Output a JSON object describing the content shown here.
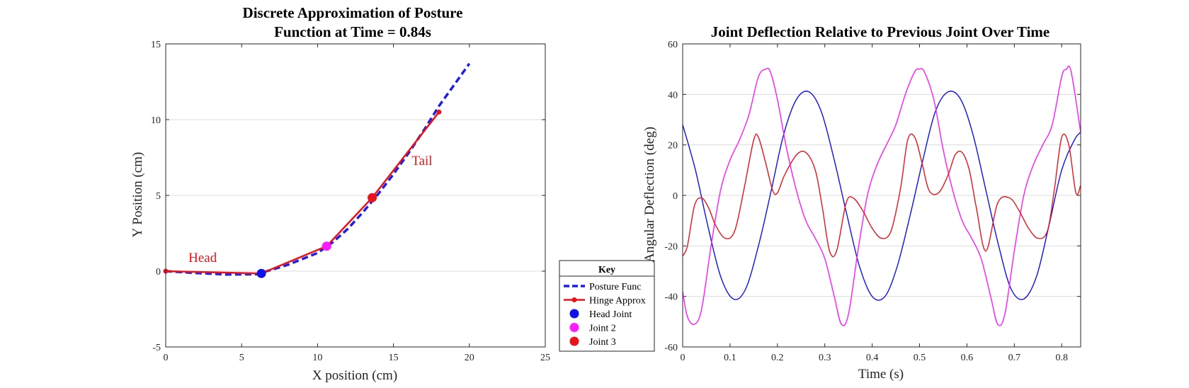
{
  "chart_data": [
    {
      "type": "line",
      "title": [
        "Discrete Approximation of Posture",
        "Function at Time = 0.84s"
      ],
      "xlabel": "X position (cm)",
      "ylabel": "Y Position (cm)",
      "xlim": [
        0,
        25
      ],
      "ylim": [
        -5,
        15
      ],
      "xticks": [
        0,
        5,
        10,
        15,
        20,
        25
      ],
      "yticks": [
        -5,
        0,
        5,
        10,
        15
      ],
      "grid": "horizontal",
      "series": [
        {
          "name": "Posture Func",
          "color": "#1f1fe6",
          "style": "dashed",
          "x": [
            0,
            2,
            4,
            6,
            8,
            10,
            11,
            12,
            13,
            14,
            15,
            16,
            17,
            18,
            19,
            20
          ],
          "y": [
            0,
            -0.12,
            -0.22,
            -0.2,
            0.4,
            1.2,
            1.9,
            2.8,
            3.9,
            5.1,
            6.4,
            7.8,
            9.3,
            10.9,
            12.3,
            13.7
          ]
        },
        {
          "name": "Hinge Approx",
          "color": "#e8141a",
          "style": "solid-marker",
          "x": [
            0,
            6.3,
            10.6,
            13.6,
            18
          ],
          "y": [
            0,
            -0.15,
            1.65,
            4.85,
            10.5
          ]
        }
      ],
      "points": [
        {
          "name": "Head Joint",
          "x": 6.3,
          "y": -0.15,
          "color": "#1010e8"
        },
        {
          "name": "Joint 2",
          "x": 10.6,
          "y": 1.65,
          "color": "#ff1aff"
        },
        {
          "name": "Joint 3",
          "x": 13.6,
          "y": 4.85,
          "color": "#e8141a"
        }
      ],
      "annotations": [
        {
          "text": "Head",
          "x": 1.5,
          "y": 0.6
        },
        {
          "text": "Tail",
          "x": 16.2,
          "y": 7.0
        }
      ],
      "legend": {
        "title": "Key",
        "placement": "outside-right-bottom",
        "entries": [
          "Posture Func",
          "Hinge Approx",
          "Head Joint",
          "Joint 2",
          "Joint 3"
        ]
      }
    },
    {
      "type": "line",
      "title": "Joint Deflection Relative to Previous Joint Over Time",
      "xlabel": "Time (s)",
      "ylabel": "Angular Deflection (deg)",
      "xlim": [
        0,
        0.84
      ],
      "ylim": [
        -60,
        60
      ],
      "xticks": [
        0,
        0.1,
        0.2,
        0.3,
        0.4,
        0.5,
        0.6,
        0.7,
        0.8
      ],
      "yticks": [
        -60,
        -40,
        -20,
        0,
        20,
        40,
        60
      ],
      "grid": "horizontal",
      "series": [
        {
          "name": "Head Joint",
          "color": "#1010e8",
          "x": [
            0,
            0.027,
            0.053,
            0.08,
            0.107,
            0.133,
            0.16,
            0.187,
            0.213,
            0.24,
            0.267,
            0.293,
            0.32,
            0.347,
            0.373,
            0.4,
            0.427,
            0.453,
            0.48,
            0.507,
            0.533,
            0.56,
            0.587,
            0.613,
            0.64,
            0.667,
            0.693,
            0.72,
            0.747,
            0.773,
            0.8,
            0.827,
            0.84
          ],
          "y": [
            28,
            10,
            -12,
            -32,
            -41,
            -37,
            -20,
            2,
            24,
            38,
            41,
            33,
            14,
            -8,
            -28,
            -40,
            -40,
            -28,
            -8,
            14,
            33,
            41,
            38,
            24,
            2,
            -20,
            -37,
            -41,
            -32,
            -12,
            10,
            22,
            25
          ]
        },
        {
          "name": "Joint 2",
          "color": "#ff1aff",
          "x": [
            0,
            0.01,
            0.025,
            0.04,
            0.06,
            0.08,
            0.1,
            0.12,
            0.14,
            0.16,
            0.175,
            0.185,
            0.2,
            0.22,
            0.24,
            0.26,
            0.28,
            0.3,
            0.32,
            0.335,
            0.35,
            0.37,
            0.39,
            0.41,
            0.43,
            0.45,
            0.47,
            0.49,
            0.5,
            0.51,
            0.53,
            0.55,
            0.57,
            0.59,
            0.61,
            0.63,
            0.65,
            0.665,
            0.68,
            0.7,
            0.72,
            0.74,
            0.76,
            0.78,
            0.8,
            0.81,
            0.82,
            0.84
          ],
          "y": [
            -38,
            -48,
            -51,
            -45,
            -20,
            2,
            14,
            22,
            32,
            47,
            50,
            49,
            38,
            18,
            2,
            -10,
            -17,
            -25,
            -40,
            -51,
            -47,
            -22,
            0,
            12,
            20,
            28,
            40,
            49,
            50,
            49,
            38,
            18,
            2,
            -10,
            -17,
            -25,
            -40,
            -51,
            -47,
            -22,
            0,
            12,
            20,
            28,
            47,
            50,
            49,
            25
          ]
        },
        {
          "name": "Joint 3",
          "color": "#e8141a",
          "x": [
            0,
            0.01,
            0.025,
            0.04,
            0.055,
            0.07,
            0.09,
            0.11,
            0.13,
            0.15,
            0.16,
            0.175,
            0.19,
            0.2,
            0.215,
            0.24,
            0.26,
            0.28,
            0.295,
            0.31,
            0.325,
            0.345,
            0.36,
            0.38,
            0.4,
            0.42,
            0.44,
            0.46,
            0.475,
            0.49,
            0.505,
            0.52,
            0.54,
            0.56,
            0.575,
            0.59,
            0.605,
            0.62,
            0.64,
            0.665,
            0.69,
            0.71,
            0.73,
            0.75,
            0.77,
            0.785,
            0.8,
            0.815,
            0.83,
            0.84
          ],
          "y": [
            -24,
            -20,
            -4,
            -1,
            -5,
            -12,
            -17,
            -14,
            3,
            22,
            23,
            13,
            2,
            1,
            8,
            16,
            17,
            10,
            -5,
            -22,
            -22,
            -3,
            -1,
            -6,
            -13,
            -17,
            -14,
            3,
            22,
            23,
            13,
            2,
            1,
            8,
            16,
            17,
            10,
            -5,
            -22,
            -3,
            -1,
            -6,
            -13,
            -17,
            -14,
            3,
            23,
            20,
            1,
            4
          ]
        }
      ]
    }
  ]
}
